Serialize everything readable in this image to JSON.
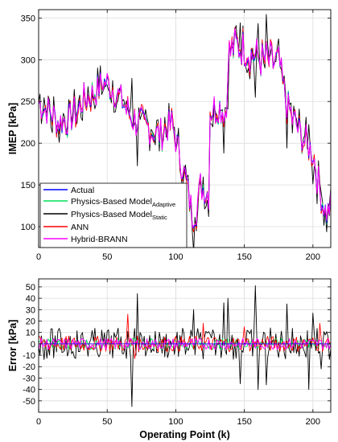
{
  "chart_data": [
    {
      "type": "line",
      "ylabel": "IMEP [kPa]",
      "xlabel": "",
      "xlim": [
        0,
        213
      ],
      "ylim": [
        75,
        360
      ],
      "xticks": [
        0,
        50,
        100,
        150,
        200
      ],
      "yticks": [
        100,
        150,
        200,
        250,
        300,
        350
      ],
      "grid": true,
      "legend_position": "bottom-left",
      "series": [
        {
          "name": "Actual",
          "label_main": "Actual",
          "label_sub": "",
          "color": "#0000ff"
        },
        {
          "name": "Physics-Based ModelAdaptive",
          "label_main": "Physics-Based Model",
          "label_sub": "Adaptive",
          "color": "#00e05a"
        },
        {
          "name": "Physics-Based ModelStatic",
          "label_main": "Physics-Based Model",
          "label_sub": "Static",
          "color": "#000000"
        },
        {
          "name": "ANN",
          "label_main": "ANN",
          "label_sub": "",
          "color": "#ff0000"
        },
        {
          "name": "Hybrid-BRANN",
          "label_main": "Hybrid-BRANN",
          "label_sub": "",
          "color": "#ff00ff"
        }
      ],
      "base_profile": [
        [
          0,
          248
        ],
        [
          8,
          238
        ],
        [
          15,
          225
        ],
        [
          22,
          228
        ],
        [
          28,
          238
        ],
        [
          32,
          250
        ],
        [
          36,
          255
        ],
        [
          42,
          262
        ],
        [
          47,
          274
        ],
        [
          52,
          268
        ],
        [
          58,
          258
        ],
        [
          64,
          240
        ],
        [
          70,
          228
        ],
        [
          76,
          222
        ],
        [
          82,
          216
        ],
        [
          88,
          210
        ],
        [
          93,
          218
        ],
        [
          97,
          224
        ],
        [
          100,
          205
        ],
        [
          104,
          178
        ],
        [
          108,
          150
        ],
        [
          112,
          115
        ],
        [
          115,
          120
        ],
        [
          118,
          150
        ],
        [
          121,
          145
        ],
        [
          124,
          140
        ],
        [
          125,
          238
        ],
        [
          132,
          245
        ],
        [
          137,
          236
        ],
        [
          138,
          305
        ],
        [
          144,
          318
        ],
        [
          150,
          314
        ],
        [
          156,
          306
        ],
        [
          162,
          300
        ],
        [
          168,
          298
        ],
        [
          174,
          296
        ],
        [
          176,
          290
        ],
        [
          180,
          250
        ],
        [
          185,
          230
        ],
        [
          190,
          215
        ],
        [
          195,
          200
        ],
        [
          200,
          190
        ],
        [
          203,
          160
        ],
        [
          207,
          130
        ],
        [
          210,
          115
        ],
        [
          213,
          125
        ]
      ],
      "main_noise_amplitude": 22
    },
    {
      "type": "line",
      "ylabel": "Error [kPa]",
      "xlabel": "Operating Point (k)",
      "xlim": [
        0,
        213
      ],
      "ylim": [
        -60,
        57
      ],
      "xticks": [
        0,
        50,
        100,
        150,
        200
      ],
      "yticks": [
        -50,
        -40,
        -30,
        -20,
        -10,
        0,
        10,
        20,
        30,
        40,
        50
      ],
      "grid": true,
      "series": [
        {
          "name": "Physics-Based ModelStatic",
          "color": "#000000",
          "amplitude": 15
        },
        {
          "name": "Physics-Based ModelAdaptive",
          "color": "#00e05a",
          "amplitude": 5
        },
        {
          "name": "ANN",
          "color": "#ff0000",
          "amplitude": 7
        },
        {
          "name": "Hybrid-BRANN",
          "color": "#ff00ff",
          "amplitude": 5
        }
      ],
      "static_error_peaks": [
        [
          68,
          -55
        ],
        [
          72,
          44
        ],
        [
          113,
          30
        ],
        [
          135,
          36
        ],
        [
          138,
          40
        ],
        [
          147,
          -35
        ],
        [
          158,
          51
        ],
        [
          160,
          -40
        ],
        [
          166,
          -36
        ],
        [
          181,
          35
        ],
        [
          197,
          -40
        ],
        [
          200,
          27
        ],
        [
          206,
          -22
        ]
      ],
      "ann_error_peaks": [
        [
          65,
          26
        ],
        [
          70,
          -13
        ],
        [
          120,
          18
        ],
        [
          150,
          15
        ],
        [
          205,
          18
        ]
      ]
    }
  ]
}
